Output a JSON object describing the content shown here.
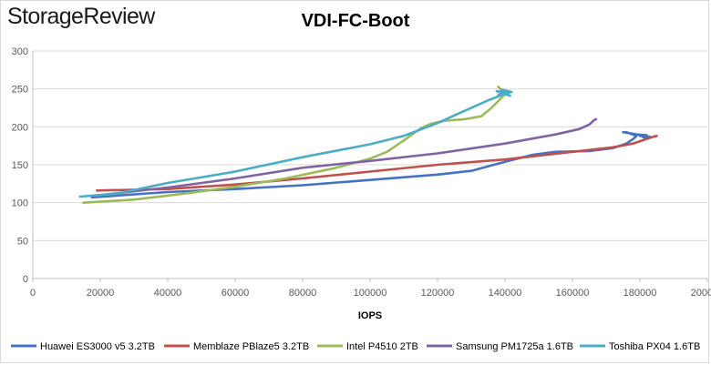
{
  "brand": {
    "logo_text": "StorageReview"
  },
  "chart_data": {
    "type": "line",
    "title": "VDI-FC-Boot",
    "xlabel": "IOPS",
    "ylabel": "",
    "xlim": [
      0,
      200000
    ],
    "ylim": [
      0,
      300
    ],
    "x_ticks": [
      0,
      20000,
      40000,
      60000,
      80000,
      100000,
      120000,
      140000,
      160000,
      180000,
      200000
    ],
    "x_tick_labels": [
      "0",
      "20000",
      "40000",
      "60000",
      "80000",
      "100000",
      "120000",
      "140000",
      "160000",
      "180000",
      "200000"
    ],
    "y_ticks": [
      0,
      50,
      100,
      150,
      200,
      250,
      300
    ],
    "grid": "horizontal",
    "legend_position": "bottom",
    "series": [
      {
        "name": "Huawei ES3000 v5 3.2TB",
        "color": "#4472C4",
        "points": [
          [
            17500,
            107
          ],
          [
            40000,
            114
          ],
          [
            60000,
            118
          ],
          [
            80000,
            123
          ],
          [
            100000,
            130
          ],
          [
            120000,
            137
          ],
          [
            130000,
            142
          ],
          [
            135000,
            148
          ],
          [
            140000,
            154
          ],
          [
            148000,
            163
          ],
          [
            155000,
            167
          ],
          [
            165000,
            168
          ],
          [
            172000,
            172
          ],
          [
            176000,
            178
          ],
          [
            178000,
            184
          ],
          [
            179000,
            188
          ],
          [
            176000,
            193
          ],
          [
            175000,
            193
          ],
          [
            179000,
            190
          ],
          [
            182000,
            189
          ],
          [
            180000,
            188
          ],
          [
            183000,
            187
          ],
          [
            181000,
            186
          ]
        ]
      },
      {
        "name": "Memblaze PBlaze5 3.2TB",
        "color": "#C0504D",
        "points": [
          [
            19000,
            116
          ],
          [
            40000,
            118
          ],
          [
            60000,
            124
          ],
          [
            80000,
            132
          ],
          [
            100000,
            141
          ],
          [
            120000,
            150
          ],
          [
            140000,
            157
          ],
          [
            160000,
            167
          ],
          [
            172000,
            173
          ],
          [
            178000,
            178
          ],
          [
            182000,
            184
          ],
          [
            184000,
            187
          ],
          [
            185000,
            188
          ]
        ]
      },
      {
        "name": "Intel P4510 2TB",
        "color": "#9BBB59",
        "points": [
          [
            15000,
            100
          ],
          [
            30000,
            104
          ],
          [
            45000,
            112
          ],
          [
            60000,
            121
          ],
          [
            75000,
            132
          ],
          [
            90000,
            146
          ],
          [
            100000,
            158
          ],
          [
            105000,
            167
          ],
          [
            110000,
            182
          ],
          [
            115000,
            198
          ],
          [
            118000,
            204
          ],
          [
            122000,
            208
          ],
          [
            128000,
            210
          ],
          [
            133000,
            214
          ],
          [
            136000,
            225
          ],
          [
            138000,
            234
          ],
          [
            140000,
            243
          ],
          [
            139000,
            248
          ],
          [
            138000,
            253
          ]
        ]
      },
      {
        "name": "Samsung PM1725a 1.6TB",
        "color": "#8064A2",
        "points": [
          [
            18000,
            109
          ],
          [
            40000,
            120
          ],
          [
            60000,
            132
          ],
          [
            80000,
            146
          ],
          [
            100000,
            155
          ],
          [
            120000,
            165
          ],
          [
            140000,
            178
          ],
          [
            155000,
            190
          ],
          [
            162000,
            197
          ],
          [
            165000,
            203
          ],
          [
            166000,
            207
          ],
          [
            166500,
            209
          ],
          [
            167000,
            210
          ]
        ]
      },
      {
        "name": "Toshiba PX04 1.6TB",
        "color": "#4BACC6",
        "points": [
          [
            14000,
            108
          ],
          [
            25000,
            112
          ],
          [
            40000,
            126
          ],
          [
            60000,
            141
          ],
          [
            80000,
            160
          ],
          [
            100000,
            177
          ],
          [
            110000,
            188
          ],
          [
            120000,
            205
          ],
          [
            125000,
            215
          ],
          [
            130000,
            225
          ],
          [
            135000,
            235
          ],
          [
            138000,
            240
          ],
          [
            140000,
            244
          ],
          [
            141000,
            243
          ],
          [
            138000,
            242
          ],
          [
            142000,
            246
          ],
          [
            139000,
            249
          ],
          [
            140000,
            245
          ],
          [
            137500,
            247
          ],
          [
            141500,
            241
          ]
        ]
      }
    ]
  }
}
